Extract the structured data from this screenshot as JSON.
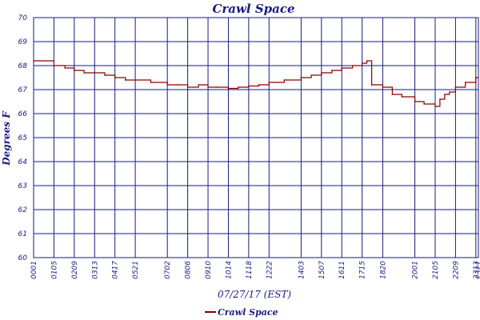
{
  "chart_data": {
    "type": "line",
    "title": "Crawl Space",
    "xlabel": "07/27/17 (EST)",
    "ylabel": "Degrees F",
    "ylim": [
      60,
      70
    ],
    "yticks": [
      "60",
      "61",
      "62",
      "63",
      "64",
      "65",
      "66",
      "67",
      "68",
      "69",
      "70"
    ],
    "xticks": [
      "00:01",
      "01:05",
      "02:09",
      "03:13",
      "04:17",
      "05:21",
      "07:02",
      "08:06",
      "09:10",
      "10:14",
      "11:18",
      "12:22",
      "14:03",
      "15:07",
      "16:11",
      "17:15",
      "18:20",
      "20:01",
      "21:05",
      "22:09",
      "23:13",
      "23:21"
    ],
    "grid": true,
    "legend_position": "bottom",
    "series": [
      {
        "name": "Crawl Space",
        "color": "#8b0000",
        "x": [
          "00:01",
          "00:30",
          "01:05",
          "01:40",
          "02:09",
          "02:40",
          "03:13",
          "03:45",
          "04:17",
          "04:50",
          "05:21",
          "06:10",
          "07:02",
          "07:35",
          "08:06",
          "08:40",
          "09:10",
          "09:40",
          "10:14",
          "10:45",
          "11:18",
          "11:50",
          "12:22",
          "13:10",
          "14:03",
          "14:35",
          "15:07",
          "15:40",
          "16:11",
          "16:45",
          "17:15",
          "17:30",
          "17:45",
          "18:20",
          "18:50",
          "19:20",
          "20:01",
          "20:30",
          "21:05",
          "21:20",
          "21:35",
          "21:50",
          "22:09",
          "22:40",
          "23:13",
          "23:21"
        ],
        "values": [
          68.2,
          68.2,
          68.0,
          67.9,
          67.8,
          67.7,
          67.7,
          67.6,
          67.5,
          67.4,
          67.4,
          67.3,
          67.2,
          67.2,
          67.1,
          67.2,
          67.1,
          67.1,
          67.05,
          67.1,
          67.15,
          67.2,
          67.3,
          67.4,
          67.5,
          67.6,
          67.7,
          67.8,
          67.9,
          68.0,
          68.1,
          68.2,
          67.2,
          67.1,
          66.8,
          66.7,
          66.5,
          66.4,
          66.3,
          66.6,
          66.8,
          66.9,
          67.1,
          67.3,
          67.5,
          67.5
        ]
      }
    ]
  }
}
